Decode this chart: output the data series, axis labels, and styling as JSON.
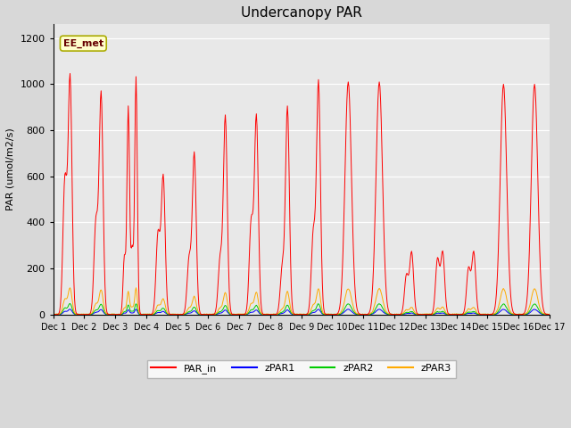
{
  "title": "Undercanopy PAR",
  "ylabel": "PAR (umol/m2/s)",
  "ylim": [
    0,
    1260
  ],
  "yticks": [
    0,
    200,
    400,
    600,
    800,
    1000,
    1200
  ],
  "plot_bg_color": "#e8e8e8",
  "fig_bg_color": "#d8d8d8",
  "annotation_text": "EE_met",
  "annotation_bg": "#ffffcc",
  "annotation_border": "#aaaa00",
  "colors": {
    "PAR_in": "#ff0000",
    "zPAR1": "#0000ff",
    "zPAR2": "#00cc00",
    "zPAR3": "#ffaa00"
  },
  "n_days": 16,
  "n_per_day": 48,
  "par_in_day_peaks": [
    [
      580,
      1030
    ],
    [
      400,
      960
    ],
    [
      250,
      900,
      280,
      1030
    ],
    [
      350,
      600
    ],
    [
      240,
      700
    ],
    [
      240,
      860
    ],
    [
      400,
      860
    ],
    [
      200,
      900
    ],
    [
      350,
      1010
    ],
    [
      1010
    ],
    [
      1010
    ],
    [
      170,
      270
    ],
    [
      240,
      270
    ],
    [
      200,
      270
    ],
    [
      1000
    ],
    [
      1000
    ]
  ],
  "zpar3_scale": 0.11,
  "zpar2_scale": 0.045,
  "zpar1_scale": 0.022
}
